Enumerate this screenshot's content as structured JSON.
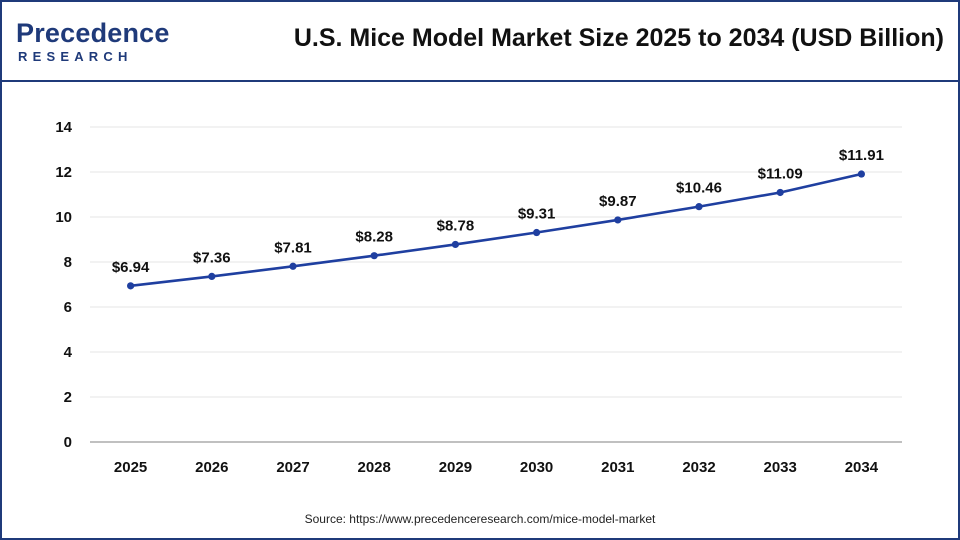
{
  "header": {
    "logo_word": "Precedence",
    "logo_sub": "RESEARCH",
    "title": "U.S. Mice Model Market Size 2025 to 2034 (USD Billion)"
  },
  "source": "Source: https://www.precedenceresearch.com/mice-model-market",
  "colors": {
    "brand": "#1f3a7a",
    "line": "#1f3fa0",
    "grid": "#e4e4e4"
  },
  "chart_data": {
    "type": "line",
    "title": "U.S. Mice Model Market Size 2025 to 2034 (USD Billion)",
    "xlabel": "",
    "ylabel": "",
    "ylim": [
      0,
      14
    ],
    "yticks": [
      0,
      2,
      4,
      6,
      8,
      10,
      12,
      14
    ],
    "grid": true,
    "categories": [
      "2025",
      "2026",
      "2027",
      "2028",
      "2029",
      "2030",
      "2031",
      "2032",
      "2033",
      "2034"
    ],
    "series": [
      {
        "values": [
          6.94,
          7.36,
          7.81,
          8.28,
          8.78,
          9.31,
          9.87,
          10.46,
          11.09,
          11.91
        ],
        "labels": [
          "$6.94",
          "$7.36",
          "$7.81",
          "$8.28",
          "$8.78",
          "$9.31",
          "$9.87",
          "$10.46",
          "$11.09",
          "$11.91"
        ]
      }
    ]
  }
}
